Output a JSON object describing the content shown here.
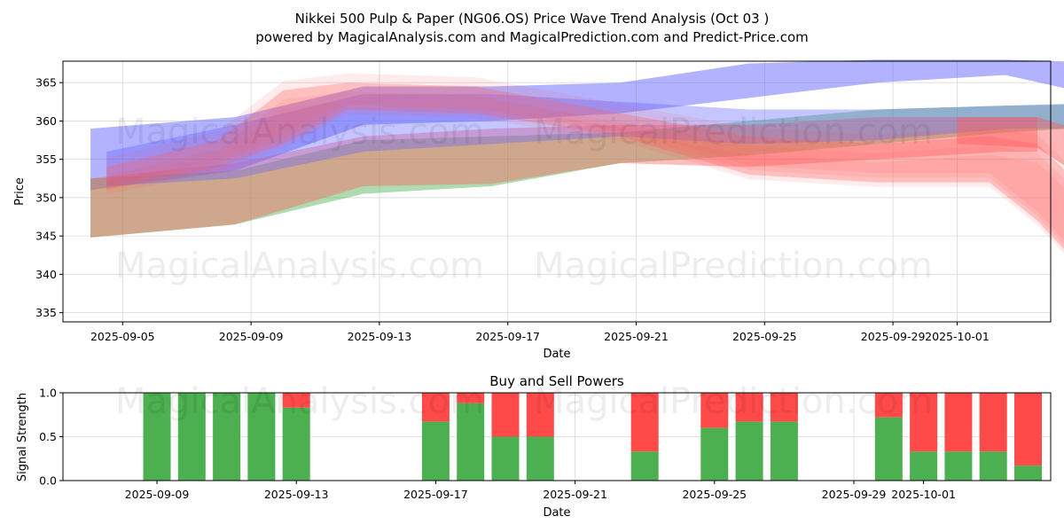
{
  "colors": {
    "blue_band": "#6666ff",
    "green_band": "#4caf50",
    "red_band": "#ff5b5b",
    "bar_buy": "#4caf50",
    "bar_sell": "#ff4a4a"
  },
  "chart_data": [
    {
      "type": "area",
      "title_line1": "Nikkei 500 Pulp & Paper (NG06.OS) Price Wave Trend Analysis (Oct 03 )",
      "title_line2": "powered by MagicalAnalysis.com and MagicalPrediction.com and Predict-Price.com",
      "xlabel": "Date",
      "ylabel": "Price",
      "ylim": [
        333.8,
        367.8
      ],
      "xlim": [
        "2025-09-03.6",
        "2025-10-05.3"
      ],
      "x_ticks": [
        "2025-09-05",
        "2025-09-09",
        "2025-09-13",
        "2025-09-17",
        "2025-09-21",
        "2025-09-25",
        "2025-09-29",
        "2025-10-01"
      ],
      "y_ticks": [
        335,
        340,
        345,
        350,
        355,
        360,
        365
      ],
      "watermarks": [
        "MagicalAnalysis.com",
        "MagicalPrediction.com",
        "MagicalAnalysis.com",
        "MagicalPrediction.com"
      ],
      "series": [
        {
          "name": "blue band",
          "color": "blue_band",
          "x": [
            0.0,
            4.5,
            8.5,
            12.5,
            16.5,
            20.5,
            24.5,
            28.5,
            32.5
          ],
          "upper": [
            359.0,
            360.5,
            364.5,
            364.5,
            365.0,
            367.5,
            368.0,
            368.0,
            367.5
          ],
          "lower": [
            351.0,
            353.5,
            359.5,
            360.0,
            361.0,
            363.0,
            365.0,
            366.0,
            362.3
          ]
        },
        {
          "name": "green band",
          "color": "green_band",
          "x": [
            0.0,
            4.5,
            8.5,
            12.5,
            16.5,
            20.5,
            24.5,
            28.5,
            32.5
          ],
          "upper": [
            352.5,
            353.5,
            357.5,
            358.0,
            358.5,
            360.0,
            361.5,
            362.0,
            362.3
          ],
          "lower": [
            344.8,
            346.5,
            350.5,
            351.5,
            354.5,
            355.5,
            357.0,
            358.5,
            359.5
          ]
        },
        {
          "name": "orange band",
          "color": "red_band",
          "x": [
            0.0,
            4.5,
            8.5,
            12.5,
            16.5,
            20.5,
            24.5,
            28.5,
            29.5
          ],
          "upper": [
            352.5,
            354.5,
            358.0,
            359.0,
            359.5,
            359.5,
            360.5,
            360.5,
            360.5
          ],
          "lower": [
            344.8,
            346.5,
            351.5,
            351.8,
            354.5,
            354.0,
            355.0,
            356.0,
            356.0
          ]
        },
        {
          "name": "purple band",
          "color": "blue_band",
          "x": [
            0.5,
            4.5,
            8.5,
            12.5,
            16.5,
            20.5,
            24.5,
            28.5,
            32.5
          ],
          "upper": [
            356.0,
            359.5,
            363.5,
            363.5,
            362.5,
            361.5,
            361.5,
            362.0,
            362.5
          ],
          "lower": [
            351.5,
            352.5,
            356.0,
            357.0,
            358.0,
            357.0,
            357.5,
            359.0,
            359.0
          ]
        },
        {
          "name": "red wave spread",
          "color": "red_band",
          "x": [
            0.5,
            4.0,
            6.0,
            8.0,
            12.0,
            16.5,
            20.5,
            24.5,
            28.0,
            29.5,
            32.5
          ],
          "upper": [
            354.0,
            357.5,
            364.0,
            365.0,
            364.5,
            361.0,
            358.0,
            357.0,
            358.0,
            357.0,
            345.0
          ],
          "lower": [
            351.0,
            354.0,
            357.0,
            361.5,
            361.0,
            358.0,
            353.0,
            352.0,
            352.0,
            347.0,
            333.5
          ]
        },
        {
          "name": "red forecast",
          "color": "red_band",
          "x": [
            27.0,
            29.5,
            31.5,
            33.2
          ],
          "upper": [
            360.5,
            360.5,
            358.0,
            354.0
          ],
          "lower": [
            357.0,
            356.5,
            351.0,
            346.8
          ]
        }
      ]
    },
    {
      "type": "bar",
      "title": "Buy and Sell Powers",
      "xlabel": "Date",
      "ylabel": "Signal Strength",
      "ylim": [
        0,
        1
      ],
      "y_ticks": [
        "0.0",
        "0.5",
        "1.0"
      ],
      "x_ticks": [
        "2025-09-09",
        "2025-09-13",
        "2025-09-17",
        "2025-09-21",
        "2025-09-25",
        "2025-09-29",
        "2025-10-01"
      ],
      "days": [
        5.0,
        6.0,
        7.0,
        8.0,
        9.0,
        13.0,
        14.0,
        15.0,
        16.0,
        19.0,
        21.0,
        22.0,
        23.0,
        26.0,
        27.0,
        28.0,
        29.0,
        30.0
      ],
      "buy": [
        1.0,
        1.0,
        1.0,
        1.0,
        0.83,
        0.67,
        0.88,
        0.5,
        0.5,
        0.33,
        0.6,
        0.67,
        0.67,
        0.72,
        0.33,
        0.33,
        0.33,
        0.17
      ]
    }
  ]
}
